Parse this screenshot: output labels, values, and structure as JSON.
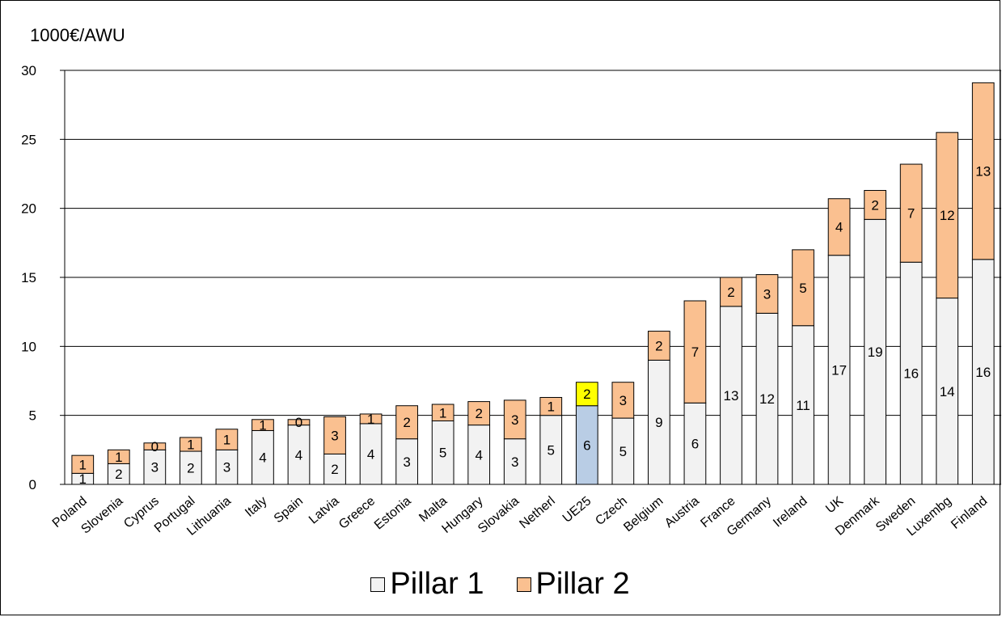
{
  "chart_data": {
    "type": "bar",
    "stacked": true,
    "ylabel": "1000€/AWU",
    "ylim": [
      0,
      30
    ],
    "yticks": [
      0,
      5,
      10,
      15,
      20,
      25,
      30
    ],
    "grid": true,
    "legend_position": "bottom",
    "categories": [
      "Poland",
      "Slovenia",
      "Cyprus",
      "Portugal",
      "Lithuania",
      "Italy",
      "Spain",
      "Latvia",
      "Greece",
      "Estonia",
      "Malta",
      "Hungary",
      "Slovakia",
      "Netherl",
      "UE25",
      "Czech",
      "Belgium",
      "Austria",
      "France",
      "Germany",
      "Ireland",
      "UK",
      "Denmark",
      "Sweden",
      "Luxembg",
      "Finland"
    ],
    "series": [
      {
        "name": "Pillar 1",
        "color": "#f2f2f2",
        "values": [
          0.8,
          1.5,
          2.5,
          2.4,
          2.5,
          3.9,
          4.3,
          2.2,
          4.4,
          3.3,
          4.6,
          4.3,
          3.3,
          5.0,
          5.7,
          4.8,
          9.0,
          5.9,
          12.9,
          12.4,
          11.5,
          16.6,
          19.2,
          16.1,
          13.5,
          16.3
        ],
        "labels": [
          "1",
          "2",
          "3",
          "2",
          "3",
          "4",
          "4",
          "2",
          "4",
          "3",
          "5",
          "4",
          "3",
          "5",
          "6",
          "5",
          "9",
          "6",
          "13",
          "12",
          "11",
          "17",
          "19",
          "16",
          "14",
          "16"
        ]
      },
      {
        "name": "Pillar 2",
        "color": "#fac090",
        "values": [
          1.3,
          1.0,
          0.5,
          1.0,
          1.5,
          0.8,
          0.4,
          2.7,
          0.7,
          2.4,
          1.2,
          1.7,
          2.8,
          1.3,
          1.7,
          2.6,
          2.1,
          7.4,
          2.1,
          2.8,
          5.5,
          4.1,
          2.1,
          7.1,
          12.0,
          12.8
        ],
        "labels": [
          "1",
          "1",
          "0",
          "1",
          "1",
          "1",
          "0",
          "3",
          "1",
          "2",
          "1",
          "2",
          "3",
          "1",
          "2",
          "3",
          "2",
          "7",
          "2",
          "3",
          "5",
          "4",
          "2",
          "7",
          "12",
          "13"
        ]
      }
    ],
    "highlight": {
      "category": "UE25",
      "colors": [
        "#b9cde5",
        "#ffff00"
      ]
    }
  }
}
